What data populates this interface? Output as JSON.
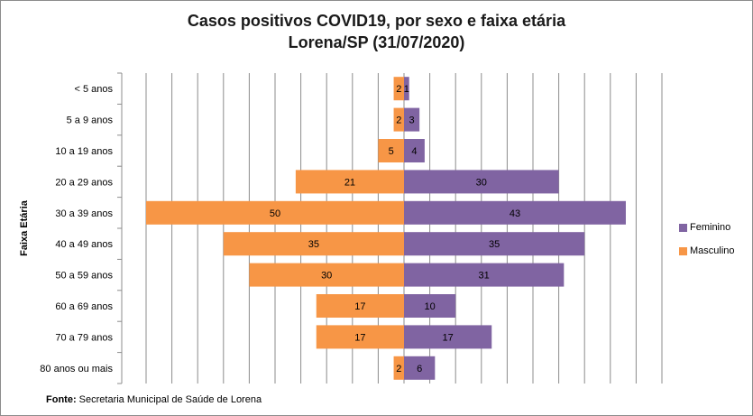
{
  "chart_data": {
    "type": "bar",
    "orientation": "horizontal",
    "title_line1": "Casos positivos  COVID19, por sexo e faixa etária",
    "title_line2": "Lorena/SP (31/07/2020)",
    "ylabel": "Faixa Etária",
    "categories": [
      "< 5 anos",
      "5 a 9 anos",
      "10 a 19 anos",
      "20 a 29 anos",
      "30 a 39 anos",
      "40 a 49 anos",
      "50 a 59 anos",
      "60 a 69 anos",
      "70 a 79 anos",
      "80 anos ou mais"
    ],
    "series": [
      {
        "name": "Feminino",
        "color": "#8064a2",
        "values": [
          1,
          3,
          4,
          30,
          43,
          35,
          31,
          10,
          17,
          6
        ]
      },
      {
        "name": "Masculino",
        "color": "#f79646",
        "values": [
          2,
          2,
          5,
          21,
          50,
          35,
          30,
          17,
          17,
          2
        ]
      }
    ],
    "xlim": [
      -50,
      50
    ],
    "grid": true,
    "legend_position": "right"
  },
  "source": {
    "label": "Fonte:",
    "text": " Secretaria Municipal de Saúde de Lorena"
  }
}
